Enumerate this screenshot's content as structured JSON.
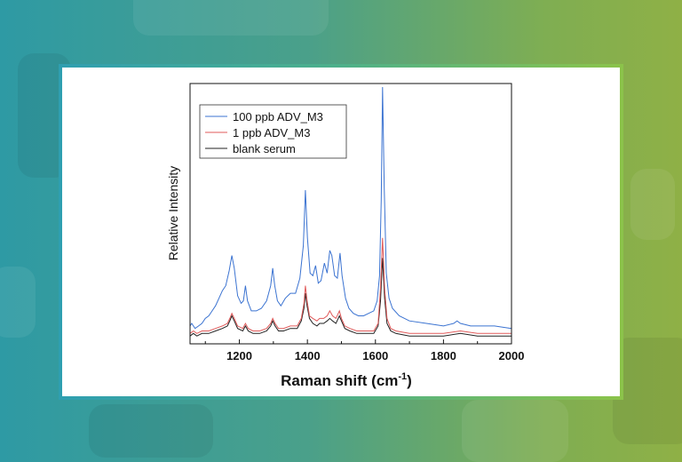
{
  "chart_data": {
    "type": "line",
    "xlabel_main": "Raman shift (cm",
    "xlabel_sup": "-1",
    "xlabel_end": ")",
    "ylabel": "Relative Intensity",
    "xlim": [
      1055,
      2000
    ],
    "ylim": [
      0,
      100
    ],
    "xticks": [
      1200,
      1400,
      1600,
      1800,
      2000
    ],
    "legend_position": "top-left",
    "series": [
      {
        "name": "100 ppb ADV_M3",
        "color": "#3b73d1",
        "points": [
          [
            1055,
            5
          ],
          [
            1060,
            6
          ],
          [
            1065,
            5
          ],
          [
            1070,
            4
          ],
          [
            1080,
            5
          ],
          [
            1090,
            6
          ],
          [
            1100,
            8
          ],
          [
            1110,
            9
          ],
          [
            1120,
            11
          ],
          [
            1130,
            13
          ],
          [
            1140,
            16
          ],
          [
            1150,
            19
          ],
          [
            1160,
            21
          ],
          [
            1170,
            27
          ],
          [
            1178,
            33
          ],
          [
            1185,
            28
          ],
          [
            1195,
            17
          ],
          [
            1205,
            14
          ],
          [
            1212,
            15
          ],
          [
            1218,
            21
          ],
          [
            1224,
            15
          ],
          [
            1235,
            11
          ],
          [
            1250,
            11
          ],
          [
            1265,
            12
          ],
          [
            1280,
            15
          ],
          [
            1292,
            21
          ],
          [
            1298,
            28
          ],
          [
            1304,
            21
          ],
          [
            1312,
            15
          ],
          [
            1322,
            13
          ],
          [
            1335,
            16
          ],
          [
            1350,
            18
          ],
          [
            1365,
            18
          ],
          [
            1378,
            24
          ],
          [
            1388,
            37
          ],
          [
            1394,
            59
          ],
          [
            1400,
            40
          ],
          [
            1408,
            26
          ],
          [
            1416,
            25
          ],
          [
            1424,
            29
          ],
          [
            1432,
            22
          ],
          [
            1440,
            23
          ],
          [
            1450,
            30
          ],
          [
            1458,
            26
          ],
          [
            1466,
            35
          ],
          [
            1472,
            33
          ],
          [
            1480,
            25
          ],
          [
            1488,
            24
          ],
          [
            1496,
            34
          ],
          [
            1502,
            25
          ],
          [
            1512,
            16
          ],
          [
            1522,
            12
          ],
          [
            1535,
            10
          ],
          [
            1550,
            9
          ],
          [
            1565,
            9
          ],
          [
            1580,
            10
          ],
          [
            1595,
            11
          ],
          [
            1605,
            15
          ],
          [
            1612,
            25
          ],
          [
            1617,
            55
          ],
          [
            1621,
            100
          ],
          [
            1626,
            60
          ],
          [
            1632,
            26
          ],
          [
            1640,
            16
          ],
          [
            1650,
            12
          ],
          [
            1670,
            9
          ],
          [
            1700,
            7
          ],
          [
            1750,
            6
          ],
          [
            1800,
            5
          ],
          [
            1830,
            6
          ],
          [
            1840,
            7
          ],
          [
            1850,
            6
          ],
          [
            1880,
            5
          ],
          [
            1900,
            5
          ],
          [
            1950,
            5
          ],
          [
            2000,
            4
          ]
        ]
      },
      {
        "name": "1 ppb ADV_M3",
        "color": "#e05a5a",
        "points": [
          [
            1055,
            2
          ],
          [
            1065,
            3
          ],
          [
            1075,
            2
          ],
          [
            1090,
            3
          ],
          [
            1110,
            3
          ],
          [
            1130,
            4
          ],
          [
            1150,
            5
          ],
          [
            1165,
            6
          ],
          [
            1172,
            8
          ],
          [
            1178,
            10
          ],
          [
            1185,
            8
          ],
          [
            1195,
            5
          ],
          [
            1210,
            4
          ],
          [
            1218,
            6
          ],
          [
            1226,
            4
          ],
          [
            1240,
            3
          ],
          [
            1260,
            3
          ],
          [
            1280,
            4
          ],
          [
            1292,
            6
          ],
          [
            1298,
            8
          ],
          [
            1305,
            6
          ],
          [
            1315,
            4
          ],
          [
            1330,
            4
          ],
          [
            1350,
            5
          ],
          [
            1370,
            5
          ],
          [
            1382,
            8
          ],
          [
            1390,
            14
          ],
          [
            1394,
            21
          ],
          [
            1399,
            15
          ],
          [
            1406,
            9
          ],
          [
            1416,
            8
          ],
          [
            1428,
            7
          ],
          [
            1436,
            8
          ],
          [
            1448,
            8
          ],
          [
            1458,
            9
          ],
          [
            1466,
            11
          ],
          [
            1474,
            9
          ],
          [
            1484,
            8
          ],
          [
            1494,
            11
          ],
          [
            1500,
            8
          ],
          [
            1510,
            5
          ],
          [
            1525,
            4
          ],
          [
            1545,
            3
          ],
          [
            1570,
            3
          ],
          [
            1595,
            3
          ],
          [
            1608,
            6
          ],
          [
            1615,
            20
          ],
          [
            1621,
            40
          ],
          [
            1627,
            20
          ],
          [
            1634,
            8
          ],
          [
            1645,
            4
          ],
          [
            1660,
            3
          ],
          [
            1700,
            2
          ],
          [
            1800,
            2
          ],
          [
            1850,
            3
          ],
          [
            1900,
            2
          ],
          [
            2000,
            2
          ]
        ]
      },
      {
        "name": "blank serum",
        "color": "#222222",
        "points": [
          [
            1055,
            1
          ],
          [
            1065,
            2
          ],
          [
            1075,
            1
          ],
          [
            1090,
            2
          ],
          [
            1110,
            2
          ],
          [
            1130,
            3
          ],
          [
            1150,
            4
          ],
          [
            1165,
            5
          ],
          [
            1172,
            7
          ],
          [
            1178,
            9
          ],
          [
            1185,
            7
          ],
          [
            1195,
            4
          ],
          [
            1210,
            3
          ],
          [
            1218,
            5
          ],
          [
            1226,
            3
          ],
          [
            1240,
            2
          ],
          [
            1260,
            2
          ],
          [
            1280,
            3
          ],
          [
            1292,
            5
          ],
          [
            1298,
            7
          ],
          [
            1305,
            5
          ],
          [
            1315,
            3
          ],
          [
            1330,
            3
          ],
          [
            1350,
            4
          ],
          [
            1370,
            4
          ],
          [
            1382,
            7
          ],
          [
            1390,
            12
          ],
          [
            1394,
            18
          ],
          [
            1399,
            13
          ],
          [
            1406,
            8
          ],
          [
            1416,
            6
          ],
          [
            1428,
            5
          ],
          [
            1436,
            6
          ],
          [
            1448,
            6
          ],
          [
            1458,
            7
          ],
          [
            1466,
            8
          ],
          [
            1474,
            7
          ],
          [
            1484,
            6
          ],
          [
            1494,
            9
          ],
          [
            1500,
            7
          ],
          [
            1510,
            4
          ],
          [
            1525,
            3
          ],
          [
            1545,
            2
          ],
          [
            1570,
            2
          ],
          [
            1595,
            2
          ],
          [
            1608,
            5
          ],
          [
            1615,
            15
          ],
          [
            1621,
            32
          ],
          [
            1627,
            16
          ],
          [
            1634,
            6
          ],
          [
            1645,
            3
          ],
          [
            1660,
            2
          ],
          [
            1700,
            1
          ],
          [
            1800,
            1
          ],
          [
            1850,
            2
          ],
          [
            1900,
            1
          ],
          [
            2000,
            1
          ]
        ]
      }
    ]
  }
}
